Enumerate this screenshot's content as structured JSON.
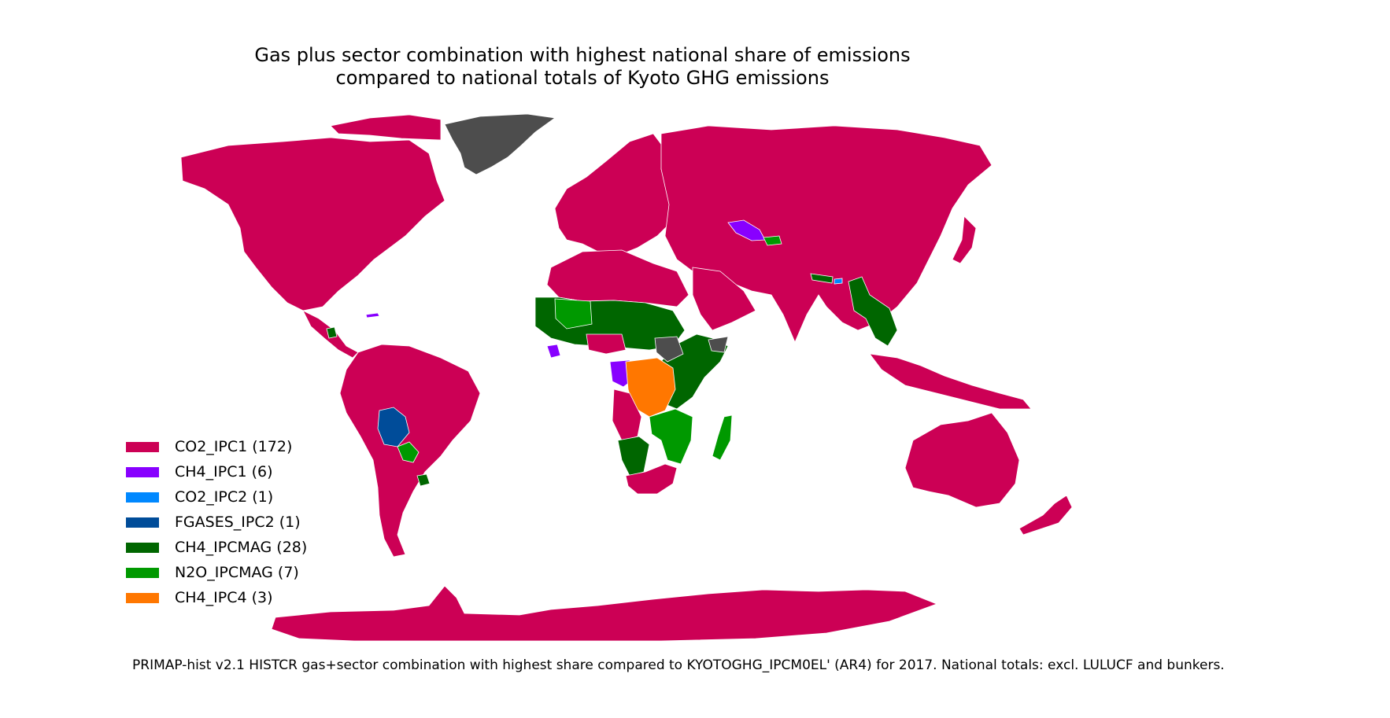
{
  "title_line1": "Gas plus sector combination with highest national share of emissions",
  "title_line2": "compared to national totals of Kyoto GHG emissions",
  "colors": {
    "co2_ipc1": "#cc0055",
    "ch4_ipc1": "#8800ff",
    "co2_ipc2": "#0088ff",
    "fgases_ipc2": "#004c99",
    "ch4_ipcmag": "#006600",
    "n2o_ipcmag": "#009900",
    "ch4_ipc4": "#ff7700",
    "no_data": "#4d4d4d"
  },
  "legend": [
    {
      "label": "CO2_IPC1 (172)",
      "color": "#cc0055"
    },
    {
      "label": "CH4_IPC1 (6)",
      "color": "#8800ff"
    },
    {
      "label": "CO2_IPC2 (1)",
      "color": "#0088ff"
    },
    {
      "label": "FGASES_IPC2 (1)",
      "color": "#004c99"
    },
    {
      "label": "CH4_IPCMAG (28)",
      "color": "#006600"
    },
    {
      "label": "N2O_IPCMAG (7)",
      "color": "#009900"
    },
    {
      "label": "CH4_IPC4 (3)",
      "color": "#ff7700"
    }
  ],
  "caption": "PRIMAP-hist v2.1 HISTCR gas+sector combination with highest share compared to KYOTOGHG_IPCM0EL' (AR4) for 2017. National totals: excl. LULUCF and bunkers."
}
